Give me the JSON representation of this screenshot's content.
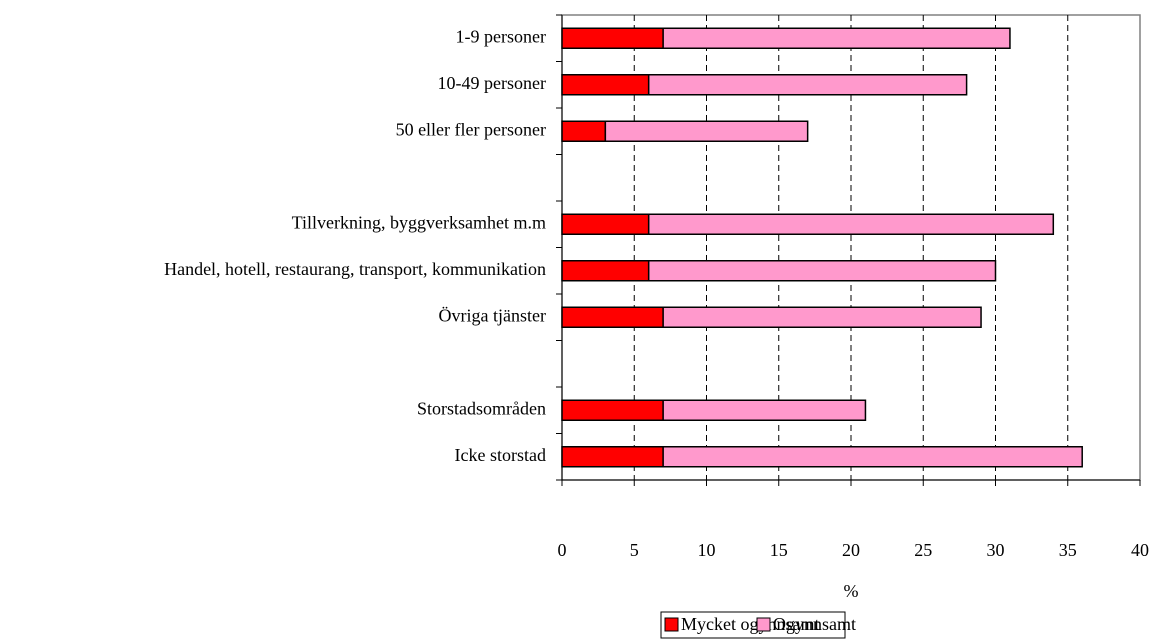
{
  "chart_data": {
    "type": "stacked-bar-horizontal",
    "categories": [
      "1-9 personer",
      "10-49 personer",
      "50 eller fler personer",
      null,
      "Tillverkning, byggverksamhet m.m",
      "Handel, hotell, restaurang, transport, kommunikation",
      "Övriga tjänster",
      null,
      "Storstadsområden",
      "Icke storstad"
    ],
    "series": [
      {
        "name": "Mycket ogynnsamt",
        "color": "#ff0000",
        "values": [
          7,
          6,
          3,
          null,
          6,
          6,
          7,
          null,
          7,
          7
        ]
      },
      {
        "name": "Ogynnsamt",
        "color": "#ff99cc",
        "values": [
          24,
          22,
          14,
          null,
          28,
          24,
          22,
          null,
          14,
          29
        ]
      }
    ],
    "xlabel": "%",
    "xlim": [
      0,
      40
    ],
    "xticks": [
      0,
      5,
      10,
      15,
      20,
      25,
      30,
      35,
      40
    ],
    "grid": true,
    "legend": "bottom"
  }
}
